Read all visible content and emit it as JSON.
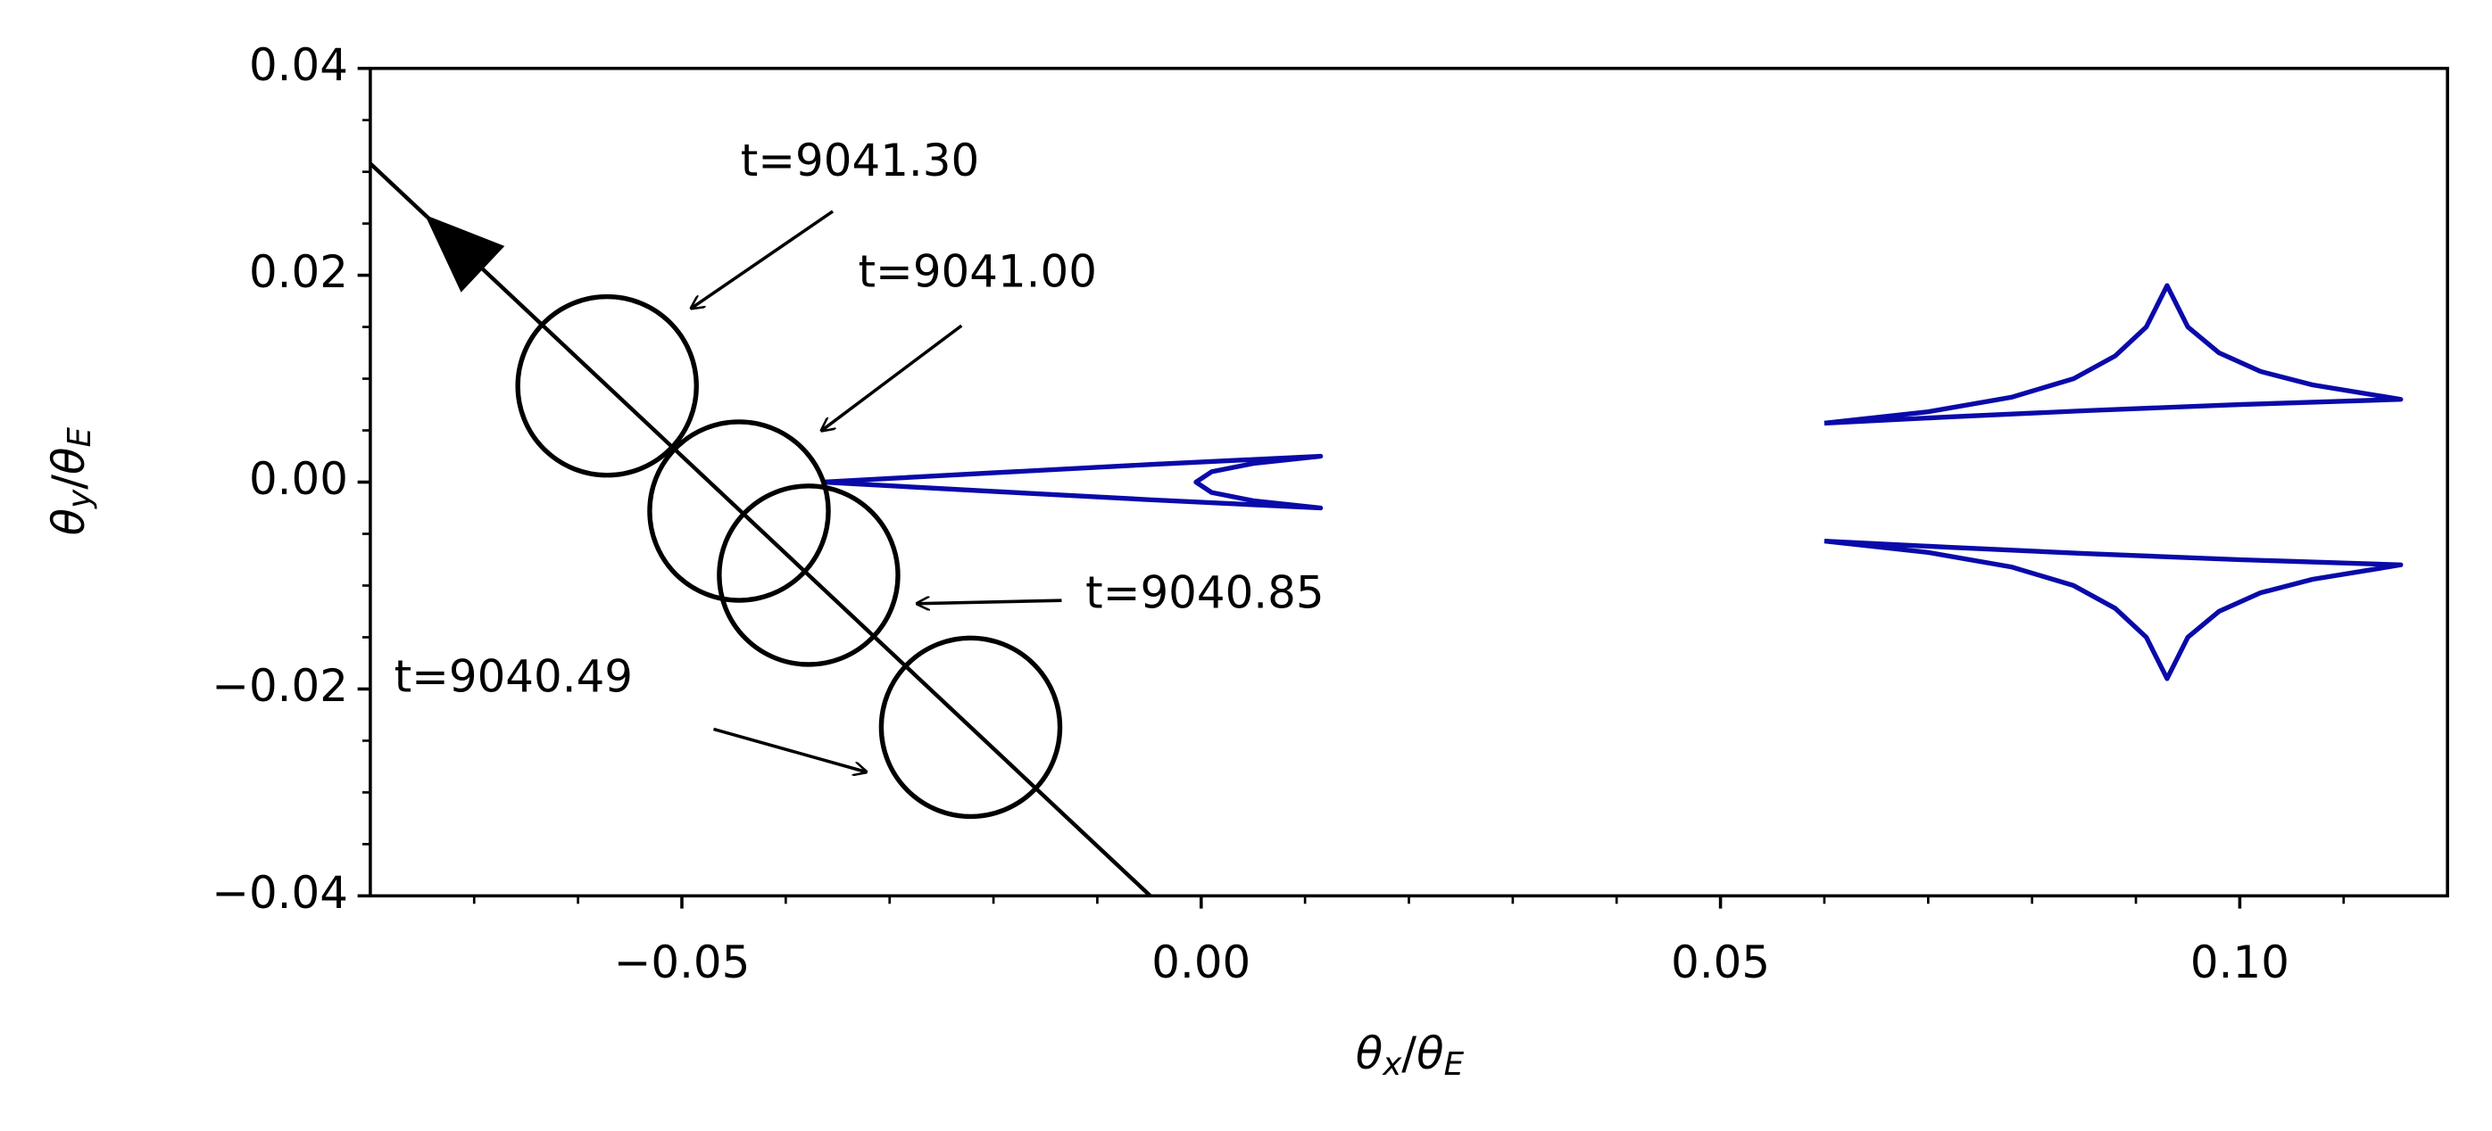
{
  "chart_data": {
    "type": "line",
    "xlabel": "θx/θE",
    "ylabel": "θy/θE",
    "xlim": [
      -0.08,
      0.12
    ],
    "ylim": [
      -0.04,
      0.04
    ],
    "xticks": [
      {
        "value": -0.05,
        "label": "−0.05"
      },
      {
        "value": 0.0,
        "label": "0.00"
      },
      {
        "value": 0.05,
        "label": "0.05"
      },
      {
        "value": 0.1,
        "label": "0.10"
      }
    ],
    "yticks": [
      {
        "value": -0.04,
        "label": "−0.04"
      },
      {
        "value": -0.02,
        "label": "−0.02"
      },
      {
        "value": 0.0,
        "label": "0.00"
      },
      {
        "value": 0.02,
        "label": "0.02"
      },
      {
        "value": 0.04,
        "label": "0.04"
      }
    ],
    "xminorticks": [
      -0.07,
      -0.06,
      -0.04,
      -0.03,
      -0.02,
      -0.01,
      0.01,
      0.02,
      0.03,
      0.04,
      0.06,
      0.07,
      0.08,
      0.09,
      0.11
    ],
    "yminorticks": [
      -0.035,
      -0.03,
      -0.025,
      -0.015,
      -0.01,
      -0.005,
      0.005,
      0.01,
      0.015,
      0.025,
      0.03,
      0.035
    ],
    "series": [
      {
        "color": "#000000",
        "x": [
          -0.08,
          -0.0049
        ],
        "y": [
          0.0308,
          -0.04
        ]
      },
      {
        "color": "#0a0aaa",
        "x": [
          -0.0365,
          -0.02,
          -0.005,
          0.0115,
          0.005,
          0.001,
          -0.0005,
          0.001,
          0.005,
          0.0115,
          -0.005,
          -0.02,
          -0.0365
        ],
        "y": [
          0.0,
          0.0009,
          0.0017,
          0.0025,
          0.0018,
          0.001,
          0.0,
          -0.001,
          -0.0018,
          -0.0025,
          -0.0017,
          -0.0009,
          0.0
        ]
      },
      {
        "color": "#0a0aaa",
        "x": [
          0.06,
          0.07,
          0.078,
          0.084,
          0.088,
          0.091,
          0.093,
          0.095,
          0.098,
          0.102,
          0.107,
          0.1155,
          0.1,
          0.085,
          0.072,
          0.06
        ],
        "y": [
          0.0057,
          0.0068,
          0.0082,
          0.01,
          0.0122,
          0.015,
          0.019,
          0.015,
          0.0125,
          0.0107,
          0.0094,
          0.008,
          0.0075,
          0.0069,
          0.0063,
          0.0057
        ]
      },
      {
        "color": "#0a0aaa",
        "x": [
          0.06,
          0.07,
          0.078,
          0.084,
          0.088,
          0.091,
          0.093,
          0.095,
          0.098,
          0.102,
          0.107,
          0.1155,
          0.1,
          0.085,
          0.072,
          0.06
        ],
        "y": [
          -0.0057,
          -0.0068,
          -0.0082,
          -0.01,
          -0.0122,
          -0.015,
          -0.019,
          -0.015,
          -0.0125,
          -0.0107,
          -0.0094,
          -0.008,
          -0.0075,
          -0.0069,
          -0.0063,
          -0.0057
        ]
      }
    ],
    "circle_radius": 0.0086,
    "circles": [
      {
        "x": -0.0572,
        "y": 0.0093,
        "label": "t=9041.30"
      },
      {
        "x": -0.0445,
        "y": -0.0028,
        "label": "t=9041.00"
      },
      {
        "x": -0.0378,
        "y": -0.009,
        "label": "t=9040.85"
      },
      {
        "x": -0.0222,
        "y": -0.0237,
        "label": "t=9040.49"
      }
    ]
  }
}
